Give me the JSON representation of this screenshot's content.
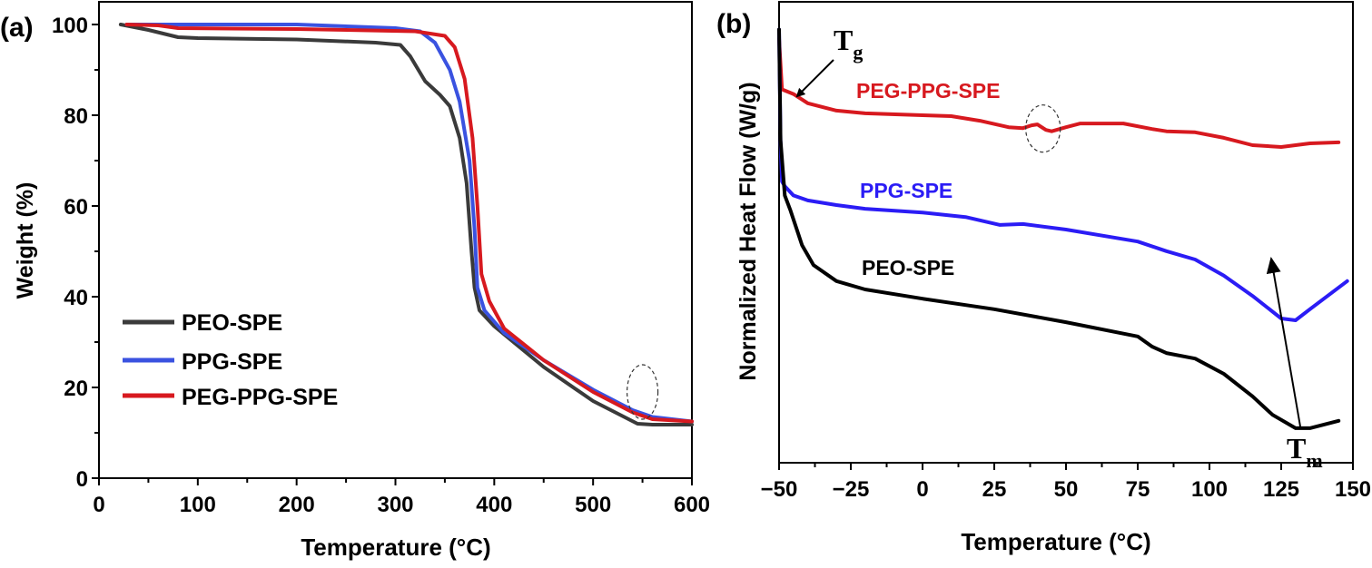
{
  "chart_data": [
    {
      "panel_label": "(a)",
      "type": "line",
      "xlabel": "Temperature (°C)",
      "ylabel": "Weight (%)",
      "xlim": [
        0,
        600
      ],
      "ylim": [
        0,
        105
      ],
      "xticks": [
        "0",
        "100",
        "200",
        "300",
        "400",
        "500",
        "600"
      ],
      "yticks": [
        "0",
        "20",
        "40",
        "60",
        "80",
        "100"
      ],
      "grid": false,
      "legend": "bottom-left",
      "series": [
        {
          "name": "PEO-SPE",
          "color": "#3a3a3a",
          "points": [
            [
              22,
              100
            ],
            [
              50,
              98.8
            ],
            [
              80,
              97.2
            ],
            [
              100,
              97
            ],
            [
              200,
              96.7
            ],
            [
              280,
              96
            ],
            [
              305,
              95.5
            ],
            [
              315,
              93
            ],
            [
              330,
              87.5
            ],
            [
              345,
              84.5
            ],
            [
              355,
              82
            ],
            [
              365,
              75
            ],
            [
              372,
              65
            ],
            [
              377,
              50
            ],
            [
              380,
              42
            ],
            [
              385,
              37
            ],
            [
              400,
              33.5
            ],
            [
              450,
              24.5
            ],
            [
              500,
              17
            ],
            [
              545,
              12
            ],
            [
              560,
              11.8
            ],
            [
              600,
              11.8
            ]
          ]
        },
        {
          "name": "PPG-SPE",
          "color": "#3a52e0",
          "points": [
            [
              28,
              100
            ],
            [
              200,
              100
            ],
            [
              300,
              99.2
            ],
            [
              325,
              98.5
            ],
            [
              340,
              96
            ],
            [
              355,
              90
            ],
            [
              365,
              83
            ],
            [
              375,
              70
            ],
            [
              380,
              55
            ],
            [
              383,
              42
            ],
            [
              390,
              37
            ],
            [
              410,
              32
            ],
            [
              450,
              26
            ],
            [
              500,
              19.5
            ],
            [
              540,
              15
            ],
            [
              560,
              13.5
            ],
            [
              600,
              12.5
            ]
          ]
        },
        {
          "name": "PEG-PPG-SPE",
          "color": "#d7191f",
          "points": [
            [
              28,
              100
            ],
            [
              60,
              99.8
            ],
            [
              80,
              99.2
            ],
            [
              200,
              99
            ],
            [
              320,
              98.5
            ],
            [
              350,
              97.5
            ],
            [
              360,
              95
            ],
            [
              370,
              88
            ],
            [
              378,
              75
            ],
            [
              383,
              60
            ],
            [
              387,
              45
            ],
            [
              395,
              39
            ],
            [
              410,
              33
            ],
            [
              450,
              26
            ],
            [
              500,
              19
            ],
            [
              540,
              14.5
            ],
            [
              560,
              13
            ],
            [
              600,
              12.5
            ]
          ]
        }
      ],
      "annotations": [
        {
          "type": "dashed-ellipse",
          "x": 550,
          "y": 19
        }
      ]
    },
    {
      "panel_label": "(b)",
      "type": "line",
      "xlabel": "Temperature (°C)",
      "ylabel": "Normalized Heat Flow (W/g)",
      "xlim": [
        -50,
        150
      ],
      "ylim": [
        0,
        100
      ],
      "xticks": [
        "-50",
        "-25",
        "0",
        "25",
        "50",
        "75",
        "100",
        "125",
        "150"
      ],
      "yticks": [],
      "grid": false,
      "series": [
        {
          "name": "PEG-PPG-SPE",
          "color": "#d7191f",
          "points": [
            [
              -50,
              92
            ],
            [
              -49,
              81
            ],
            [
              -45,
              80
            ],
            [
              -40,
              78
            ],
            [
              -30,
              76.4
            ],
            [
              -20,
              75.8
            ],
            [
              0,
              75.4
            ],
            [
              10,
              75.2
            ],
            [
              20,
              74.2
            ],
            [
              30,
              72.8
            ],
            [
              35,
              72.6
            ],
            [
              38,
              73.2
            ],
            [
              40,
              73.4
            ],
            [
              43,
              72.2
            ],
            [
              45,
              71.9
            ],
            [
              50,
              72.8
            ],
            [
              55,
              73.6
            ],
            [
              70,
              73.6
            ],
            [
              80,
              72.4
            ],
            [
              85,
              71.9
            ],
            [
              95,
              71.7
            ],
            [
              105,
              70.5
            ],
            [
              115,
              68.9
            ],
            [
              125,
              68.5
            ],
            [
              135,
              69.3
            ],
            [
              145,
              69.5
            ]
          ]
        },
        {
          "name": "PPG-SPE",
          "color": "#2b1cf5",
          "points": [
            [
              -50,
              94
            ],
            [
              -49.5,
              70
            ],
            [
              -49,
              61
            ],
            [
              -48,
              60
            ],
            [
              -45,
              58
            ],
            [
              -40,
              56.9
            ],
            [
              -30,
              55.9
            ],
            [
              -20,
              55.1
            ],
            [
              0,
              54.3
            ],
            [
              15,
              53.3
            ],
            [
              27,
              51.6
            ],
            [
              35,
              51.8
            ],
            [
              50,
              50.6
            ],
            [
              75,
              48
            ],
            [
              85,
              45.9
            ],
            [
              95,
              44.1
            ],
            [
              105,
              40.6
            ],
            [
              115,
              36.2
            ],
            [
              125,
              31.3
            ],
            [
              130,
              30.9
            ],
            [
              135,
              33.3
            ],
            [
              148,
              39.4
            ]
          ]
        },
        {
          "name": "PEO-SPE",
          "color": "#000000",
          "points": [
            [
              -50,
              94
            ],
            [
              -49.5,
              70
            ],
            [
              -48,
              58
            ],
            [
              -46,
              54.7
            ],
            [
              -42,
              47.2
            ],
            [
              -38,
              42.9
            ],
            [
              -30,
              39.4
            ],
            [
              -20,
              37.6
            ],
            [
              0,
              35.6
            ],
            [
              25,
              33.3
            ],
            [
              50,
              30.5
            ],
            [
              75,
              27.4
            ],
            [
              80,
              25.2
            ],
            [
              85,
              23.8
            ],
            [
              95,
              22.6
            ],
            [
              105,
              19.3
            ],
            [
              115,
              14.4
            ],
            [
              122,
              10.4
            ],
            [
              130,
              7.5
            ],
            [
              135,
              7.5
            ],
            [
              145,
              9.1
            ]
          ]
        }
      ],
      "annotations": [
        {
          "type": "arrow-label",
          "label": "T",
          "subscript": "g"
        },
        {
          "type": "arrow-label",
          "label": "T",
          "subscript": "m"
        },
        {
          "type": "dashed-ellipse",
          "x": 42,
          "y": 72.5
        }
      ]
    }
  ]
}
